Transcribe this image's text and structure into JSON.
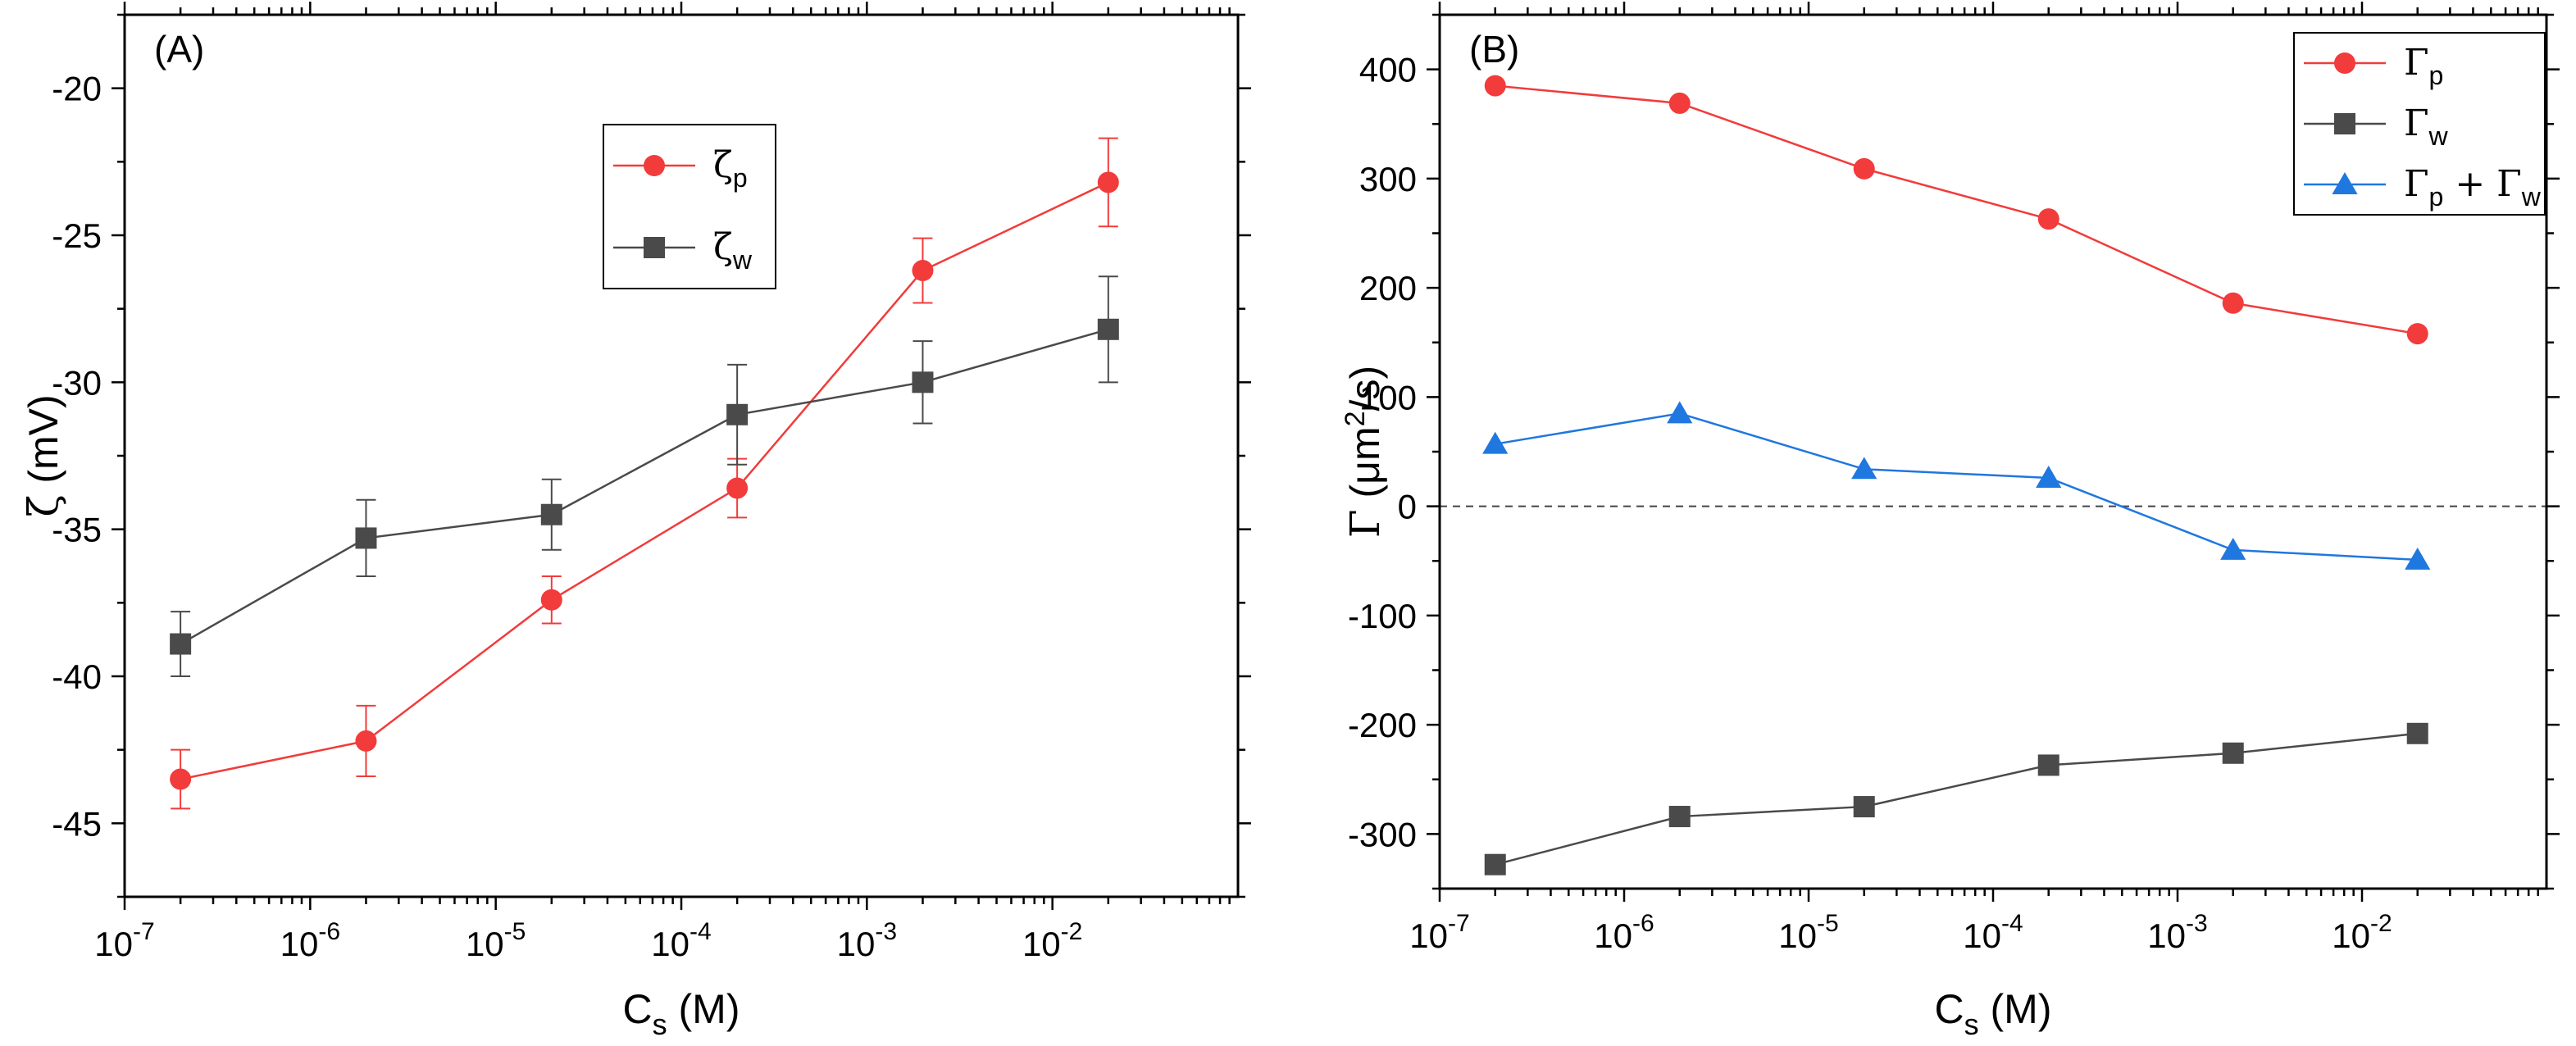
{
  "chart_data": [
    {
      "type": "line",
      "panel_label": "(A)",
      "x_scale": "log",
      "xlim": [
        1e-07,
        0.1
      ],
      "ylim": [
        -47.5,
        -17.5
      ],
      "x_ticks": [
        {
          "value": 1e-07,
          "mantissa": "10",
          "exp": "-7"
        },
        {
          "value": 1e-06,
          "mantissa": "10",
          "exp": "-6"
        },
        {
          "value": 1e-05,
          "mantissa": "10",
          "exp": "-5"
        },
        {
          "value": 0.0001,
          "mantissa": "10",
          "exp": "-4"
        },
        {
          "value": 0.001,
          "mantissa": "10",
          "exp": "-3"
        },
        {
          "value": 0.01,
          "mantissa": "10",
          "exp": "-2"
        }
      ],
      "y_ticks": [
        "-20",
        "-25",
        "-30",
        "-35",
        "-40",
        "-45"
      ],
      "xlabel": {
        "base": "C",
        "sub": "s",
        "unit": " (M)"
      },
      "ylabel": {
        "symbol": "ζ",
        "unit": " (mV)"
      },
      "legend_position": "upper-center",
      "series": [
        {
          "name": "ζ_p",
          "symbol": "ζ",
          "sub": "p",
          "marker": "circle",
          "color": "#f23b3b",
          "x": [
            2e-07,
            2e-06,
            2e-05,
            0.0002,
            0.002,
            0.02
          ],
          "y": [
            -43.5,
            -42.2,
            -37.4,
            -33.6,
            -26.2,
            -23.2
          ],
          "error": [
            1.0,
            1.2,
            0.8,
            1.0,
            1.1,
            1.5
          ]
        },
        {
          "name": "ζ_w",
          "symbol": "ζ",
          "sub": "w",
          "marker": "square",
          "color": "#4a4a4a",
          "x": [
            2e-07,
            2e-06,
            2e-05,
            0.0002,
            0.002,
            0.02
          ],
          "y": [
            -38.9,
            -35.3,
            -34.5,
            -31.1,
            -30.0,
            -28.2
          ],
          "error": [
            1.1,
            1.3,
            1.2,
            1.7,
            1.4,
            1.8
          ]
        }
      ]
    },
    {
      "type": "line",
      "panel_label": "(B)",
      "x_scale": "log",
      "xlim": [
        1e-07,
        0.1
      ],
      "ylim": [
        -350,
        450
      ],
      "x_ticks": [
        {
          "value": 1e-07,
          "mantissa": "10",
          "exp": "-7"
        },
        {
          "value": 1e-06,
          "mantissa": "10",
          "exp": "-6"
        },
        {
          "value": 1e-05,
          "mantissa": "10",
          "exp": "-5"
        },
        {
          "value": 0.0001,
          "mantissa": "10",
          "exp": "-4"
        },
        {
          "value": 0.001,
          "mantissa": "10",
          "exp": "-3"
        },
        {
          "value": 0.01,
          "mantissa": "10",
          "exp": "-2"
        }
      ],
      "y_ticks": [
        "400",
        "300",
        "200",
        "100",
        "0",
        "-100",
        "-200",
        "-300"
      ],
      "xlabel": {
        "base": "C",
        "sub": "s",
        "unit": " (M)"
      },
      "ylabel": {
        "symbol": "Γ",
        "pre": " (μm",
        "sup": "2",
        "post": "/s)"
      },
      "reference_line": {
        "y": 0,
        "style": "dashed"
      },
      "legend_position": "top-right",
      "series": [
        {
          "name": "Γ_p",
          "label_parts": [
            "Γ",
            "p"
          ],
          "marker": "circle",
          "color": "#f23b3b",
          "x": [
            2e-07,
            2e-06,
            2e-05,
            0.0002,
            0.002,
            0.02
          ],
          "y": [
            385,
            369,
            309,
            263,
            186,
            158
          ]
        },
        {
          "name": "Γ_w",
          "label_parts": [
            "Γ",
            "w"
          ],
          "marker": "square",
          "color": "#4a4a4a",
          "x": [
            2e-07,
            2e-06,
            2e-05,
            0.0002,
            0.002,
            0.02
          ],
          "y": [
            -328,
            -284,
            -275,
            -237,
            -226,
            -208
          ]
        },
        {
          "name": "Γ_p + Γ_w",
          "label_parts": [
            "Γ",
            "p",
            " + Γ",
            "w"
          ],
          "marker": "triangle",
          "color": "#1f77e0",
          "x": [
            2e-07,
            2e-06,
            2e-05,
            0.0002,
            0.002,
            0.02
          ],
          "y": [
            57,
            85,
            34,
            26,
            -40,
            -49
          ]
        }
      ]
    }
  ]
}
